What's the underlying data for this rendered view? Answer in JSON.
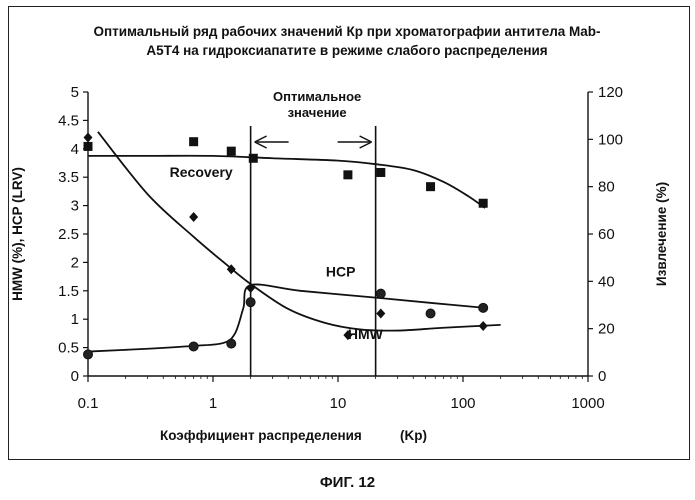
{
  "caption": "ФИГ. 12",
  "chart_data": {
    "type": "scatter",
    "title_lines": [
      "Оптимальный ряд рабочих значений Кр при хроматографии антитела Mab-",
      "A5T4 на гидроксиапатите в режиме слабого распределения"
    ],
    "xlabel": "Коэффициент распределения",
    "xlabel_suffix": "(Kp)",
    "ylabel_left": "HMW (%), HCP (LRV)",
    "ylabel_right": "Извлечение   (%)",
    "x_scale": "log",
    "xlim": [
      0.1,
      1000
    ],
    "ylim_left": [
      0,
      5
    ],
    "ylim_right": [
      0,
      120
    ],
    "x_ticks": [
      "0.1",
      "1",
      "10",
      "100",
      "1000"
    ],
    "y_ticks_left": [
      "0",
      "0.5",
      "1",
      "1.5",
      "2",
      "2.5",
      "3",
      "3.5",
      "4",
      "4.5",
      "5"
    ],
    "y_ticks_right": [
      "0",
      "20",
      "40",
      "60",
      "80",
      "100",
      "120"
    ],
    "optimal_range": {
      "label_lines": [
        "Оптимальное",
        "значение"
      ],
      "x_min": 2,
      "x_max": 20
    },
    "series": [
      {
        "name": "Recovery",
        "axis": "right",
        "marker": "square",
        "points": [
          [
            0.1,
            97
          ],
          [
            0.7,
            99
          ],
          [
            1.4,
            95
          ],
          [
            2.1,
            92
          ],
          [
            12,
            85
          ],
          [
            22,
            86
          ],
          [
            55,
            80
          ],
          [
            145,
            73
          ]
        ],
        "curve": [
          [
            0.1,
            93
          ],
          [
            0.3,
            93
          ],
          [
            1,
            93
          ],
          [
            3,
            92
          ],
          [
            10,
            91
          ],
          [
            20,
            89.5
          ],
          [
            40,
            87
          ],
          [
            70,
            82
          ],
          [
            110,
            76
          ],
          [
            150,
            71
          ]
        ]
      },
      {
        "name": "HCP",
        "axis": "left",
        "marker": "circle",
        "points": [
          [
            0.1,
            0.38
          ],
          [
            0.7,
            0.52
          ],
          [
            1.4,
            0.57
          ],
          [
            2,
            1.3
          ],
          [
            22,
            1.45
          ],
          [
            55,
            1.1
          ],
          [
            145,
            1.2
          ]
        ],
        "curve": [
          [
            0.1,
            0.43
          ],
          [
            0.3,
            0.48
          ],
          [
            0.7,
            0.53
          ],
          [
            1.2,
            0.58
          ],
          [
            1.5,
            0.75
          ],
          [
            1.75,
            1.2
          ],
          [
            2,
            1.6
          ],
          [
            5,
            1.5
          ],
          [
            20,
            1.38
          ],
          [
            60,
            1.28
          ],
          [
            150,
            1.2
          ]
        ]
      },
      {
        "name": "HMW",
        "axis": "left",
        "marker": "diamond",
        "points": [
          [
            0.1,
            4.2
          ],
          [
            0.7,
            2.8
          ],
          [
            1.4,
            1.88
          ],
          [
            2,
            1.55
          ],
          [
            12,
            0.72
          ],
          [
            22,
            1.1
          ],
          [
            145,
            0.88
          ]
        ],
        "curve": [
          [
            0.12,
            4.3
          ],
          [
            0.3,
            3.2
          ],
          [
            0.7,
            2.45
          ],
          [
            1.3,
            1.95
          ],
          [
            2,
            1.62
          ],
          [
            4,
            1.18
          ],
          [
            8,
            0.93
          ],
          [
            15,
            0.82
          ],
          [
            30,
            0.8
          ],
          [
            70,
            0.85
          ],
          [
            200,
            0.9
          ]
        ]
      }
    ],
    "annotations": [
      {
        "text": "Recovery",
        "x": 0.45,
        "y_right": 84
      },
      {
        "text": "HCP",
        "x": 8,
        "y": 1.75
      },
      {
        "text": "HMW",
        "x": 12,
        "y": 0.65
      }
    ]
  }
}
